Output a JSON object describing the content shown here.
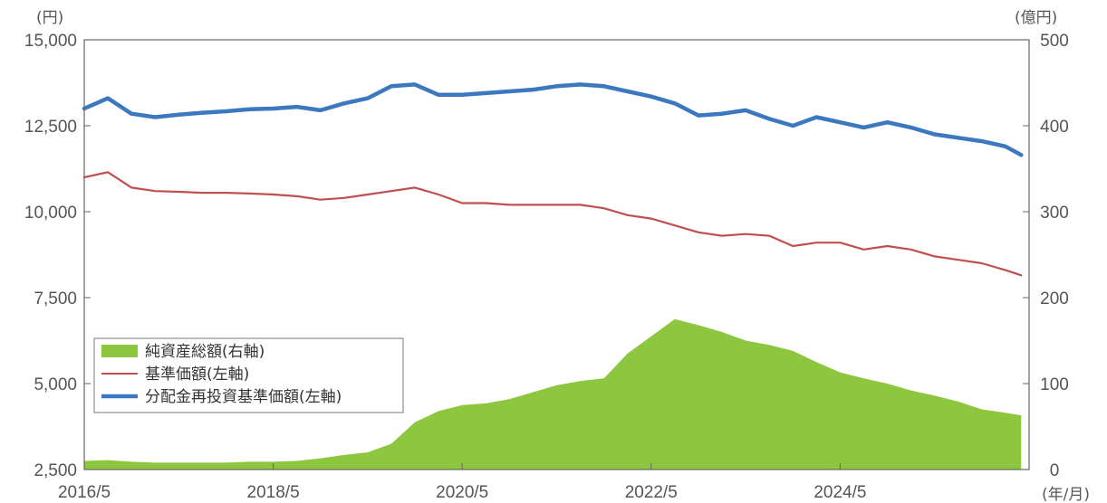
{
  "chart_data": {
    "type": "line",
    "y_left_unit": "(円)",
    "y_right_unit": "(億円)",
    "x_unit": "(年/月)",
    "x_ticks": [
      "2016/5",
      "2018/5",
      "2020/5",
      "2022/5",
      "2024/5"
    ],
    "x_range": [
      "2016/5",
      "2026/5"
    ],
    "y_left_ticks": [
      "15,000",
      "12,500",
      "10,000",
      "7,500",
      "5,000",
      "2,500"
    ],
    "y_left_range": [
      2500,
      15000
    ],
    "y_right_ticks": [
      "500",
      "400",
      "300",
      "200",
      "100",
      "0"
    ],
    "y_right_range": [
      0,
      500
    ],
    "grid": false,
    "legend_position": "left",
    "x": [
      "2016/5",
      "2016/8",
      "2016/11",
      "2017/2",
      "2017/5",
      "2017/8",
      "2017/11",
      "2018/2",
      "2018/5",
      "2018/8",
      "2018/11",
      "2019/2",
      "2019/5",
      "2019/8",
      "2019/11",
      "2020/2",
      "2020/5",
      "2020/8",
      "2020/11",
      "2021/2",
      "2021/5",
      "2021/8",
      "2021/11",
      "2022/2",
      "2022/5",
      "2022/8",
      "2022/11",
      "2023/2",
      "2023/5",
      "2023/8",
      "2023/11",
      "2024/2",
      "2024/5",
      "2024/8",
      "2024/11",
      "2025/2",
      "2025/5",
      "2025/8",
      "2025/11",
      "2026/2",
      "2026/4"
    ],
    "series": [
      {
        "name": "純資産総額(右軸)",
        "axis": "right",
        "style": "area",
        "color": "#8dc63f",
        "values": [
          10,
          11,
          9,
          8,
          8,
          8,
          8,
          9,
          9,
          10,
          13,
          17,
          20,
          30,
          55,
          68,
          75,
          77,
          82,
          90,
          98,
          103,
          106,
          135,
          155,
          175,
          168,
          160,
          150,
          145,
          138,
          125,
          113,
          106,
          100,
          92,
          86,
          79,
          70,
          66,
          63
        ]
      },
      {
        "name": "基準価額(左軸)",
        "axis": "left",
        "style": "line",
        "color": "#c0504d",
        "values": [
          11000,
          11150,
          10700,
          10600,
          10580,
          10550,
          10550,
          10530,
          10500,
          10450,
          10350,
          10400,
          10500,
          10600,
          10700,
          10500,
          10250,
          10250,
          10200,
          10200,
          10200,
          10200,
          10100,
          9900,
          9800,
          9600,
          9400,
          9300,
          9350,
          9300,
          9000,
          9100,
          9100,
          8900,
          9000,
          8900,
          8700,
          8600,
          8500,
          8300,
          8150
        ]
      },
      {
        "name": "分配金再投資基準価額(左軸)",
        "axis": "left",
        "style": "line",
        "color": "#3b78c0",
        "values": [
          13000,
          13300,
          12850,
          12750,
          12820,
          12880,
          12920,
          12980,
          13000,
          13050,
          12950,
          13150,
          13300,
          13650,
          13700,
          13400,
          13400,
          13450,
          13500,
          13550,
          13650,
          13700,
          13650,
          13500,
          13350,
          13150,
          12800,
          12850,
          12950,
          12700,
          12500,
          12750,
          12600,
          12450,
          12600,
          12450,
          12250,
          12150,
          12050,
          11900,
          11650
        ]
      }
    ]
  }
}
